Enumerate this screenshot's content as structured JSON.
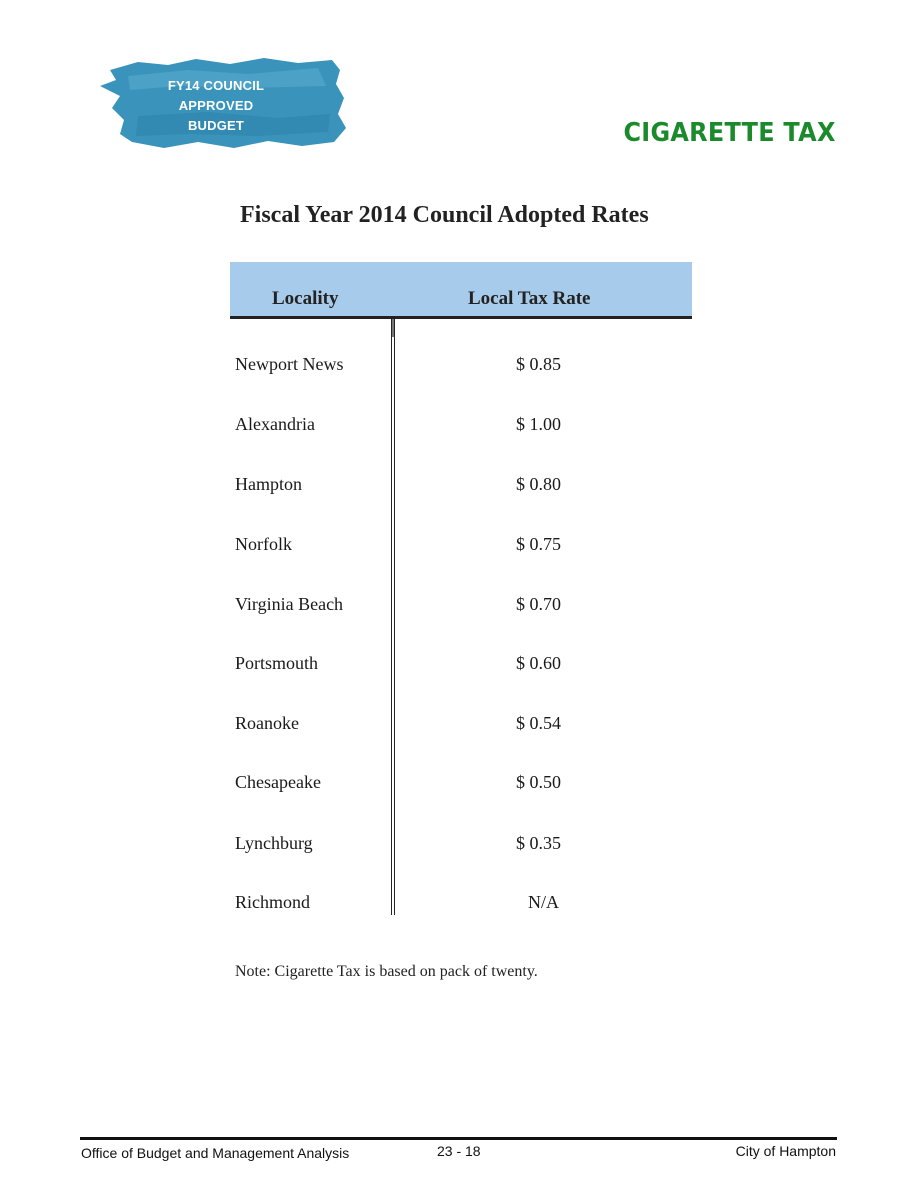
{
  "badge": {
    "lines": [
      "FY14 COUNCIL",
      "APPROVED",
      "BUDGET"
    ],
    "color": "#3a93bb"
  },
  "header": {
    "section_title": "CIGARETTE TAX",
    "section_title_color": "#1b8a2c"
  },
  "document": {
    "title": "Fiscal Year 2014 Council Adopted Rates"
  },
  "table": {
    "header_color": "#a7cbea",
    "columns": [
      "Locality",
      "Local Tax Rate"
    ],
    "rows": [
      {
        "locality": "Newport News",
        "rate": "$ 0.85"
      },
      {
        "locality": "Alexandria",
        "rate": "$ 1.00"
      },
      {
        "locality": "Hampton",
        "rate": "$ 0.80"
      },
      {
        "locality": "Norfolk",
        "rate": "$ 0.75"
      },
      {
        "locality": "Virginia Beach",
        "rate": "$ 0.70"
      },
      {
        "locality": "Portsmouth",
        "rate": "$ 0.60"
      },
      {
        "locality": "Roanoke",
        "rate": "$ 0.54"
      },
      {
        "locality": "Chesapeake",
        "rate": "$ 0.50"
      },
      {
        "locality": "Lynchburg",
        "rate": "$ 0.35"
      },
      {
        "locality": "Richmond",
        "rate": "N/A"
      }
    ]
  },
  "note": "Note: Cigarette Tax is based on pack of twenty.",
  "footer": {
    "left": "Office of Budget and Management Analysis",
    "center": "23 - 18",
    "right": "City of Hampton"
  }
}
